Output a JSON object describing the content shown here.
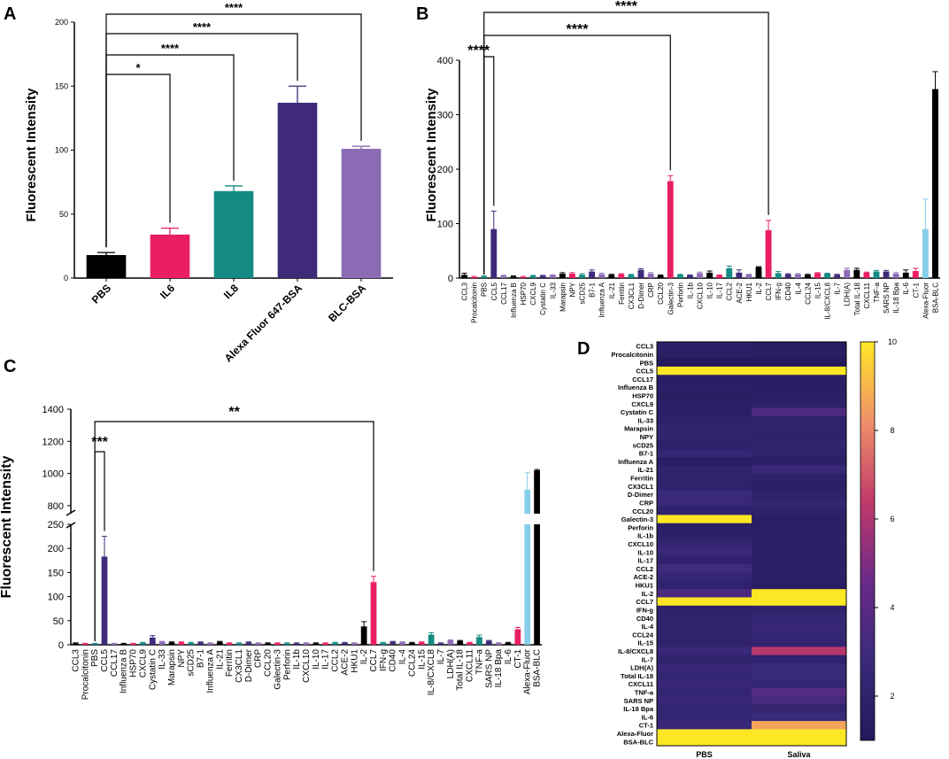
{
  "chart_data": [
    {
      "panel": "A",
      "type": "bar",
      "ylabel": "Fluorescent Intensity",
      "ylim": [
        0,
        200
      ],
      "yticks": [
        0,
        50,
        100,
        150,
        200
      ],
      "categories": [
        "PBS",
        "IL6",
        "IL8",
        "Alexa Fluor 647-BSA",
        "BLC-BSA"
      ],
      "values": [
        18,
        34,
        68,
        137,
        101
      ],
      "errors": [
        2,
        5,
        4,
        13,
        2
      ],
      "colors": [
        "#000000",
        "#e91e63",
        "#138a82",
        "#3f2a7a",
        "#8b6bb4"
      ],
      "significance": [
        {
          "from": 0,
          "to": 1,
          "label": "*"
        },
        {
          "from": 0,
          "to": 2,
          "label": "****"
        },
        {
          "from": 0,
          "to": 3,
          "label": "****"
        },
        {
          "from": 0,
          "to": 4,
          "label": "****"
        }
      ]
    },
    {
      "panel": "B",
      "type": "bar",
      "ylabel": "Fluorescent Intensity",
      "ylim": [
        0,
        400
      ],
      "yticks": [
        0,
        100,
        200,
        300,
        400
      ],
      "categories": [
        "CCL3",
        "Procalcitonin",
        "PBS",
        "CCL5",
        "CCL17",
        "Influenza B",
        "HSP70",
        "CXCL9",
        "Cystatin C",
        "IL-33",
        "Marapsin",
        "NPY",
        "sCD25",
        "B7-1",
        "Influenza A",
        "IL-21",
        "Ferritin",
        "CX3CL1",
        "D-Dimer",
        "CRP",
        "CCL20",
        "Galectin-3",
        "Perforin",
        "IL-1b",
        "CXCL10",
        "IL-10",
        "IL-17",
        "CCL2",
        "ACE-2",
        "HKU1",
        "IL-2",
        "CCL7",
        "IFN-g",
        "CD40",
        "IL-4",
        "CCL24",
        "IL-15",
        "IL-8/CXCL8",
        "IL-7",
        "LDH(A)",
        "Total IL-18",
        "CXCL11",
        "TNF-a",
        "SARS NP",
        "IL-18 Bpa",
        "IL-6",
        "CT-1",
        "Alexa-Fluor",
        "BSA-BLC"
      ],
      "values": [
        6,
        2,
        3,
        90,
        4,
        3,
        2,
        4,
        4,
        5,
        8,
        8,
        6,
        12,
        7,
        6,
        7,
        6,
        15,
        8,
        5,
        178,
        6,
        5,
        9,
        10,
        5,
        18,
        10,
        6,
        20,
        88,
        9,
        7,
        7,
        6,
        9,
        8,
        6,
        15,
        15,
        10,
        12,
        12,
        8,
        10,
        13,
        90,
        347
      ],
      "errors": [
        3,
        1,
        1,
        33,
        1,
        1,
        1,
        1,
        1,
        1,
        2,
        2,
        2,
        3,
        2,
        1,
        1,
        1,
        2,
        2,
        1,
        10,
        1,
        1,
        2,
        3,
        1,
        4,
        5,
        1,
        1,
        18,
        3,
        1,
        1,
        1,
        1,
        1,
        1,
        3,
        3,
        1,
        2,
        2,
        2,
        5,
        5,
        55,
        32
      ],
      "significance": [
        {
          "from": 2,
          "to": 3,
          "label": "****"
        },
        {
          "from": 2,
          "to": 21,
          "label": "****"
        },
        {
          "from": 2,
          "to": 31,
          "label": "****"
        }
      ]
    },
    {
      "panel": "C",
      "type": "bar",
      "broken_axis": true,
      "ylabel": "Fluorescent Intensity",
      "lower_ylim": [
        0,
        250
      ],
      "lower_yticks": [
        0,
        50,
        100,
        150,
        200,
        250
      ],
      "upper_ylim": [
        750,
        1400
      ],
      "upper_yticks": [
        800,
        1000,
        1200,
        1400
      ],
      "categories": [
        "CCL3",
        "Procalcitonin",
        "PBS",
        "CCL5",
        "CCL17",
        "Influenza B",
        "HSP70",
        "CXCL9",
        "Cystatin C",
        "IL-33",
        "Marapsin",
        "NPY",
        "sCD25",
        "B7-1",
        "Influenza A",
        "IL-21",
        "Ferritin",
        "CX3CL1",
        "D-Dimer",
        "CRP",
        "CCL20",
        "Galectin-3",
        "Perforin",
        "IL-1b",
        "CXCL10",
        "IL-10",
        "IL-17",
        "CCL2",
        "ACE-2",
        "HKU1",
        "IL-2",
        "CCL7",
        "IFN-g",
        "CD40",
        "IL-4",
        "CCL24",
        "IL-15",
        "IL-8/CXCL8",
        "IL-7",
        "LDH(A)",
        "Total IL-18",
        "CXCL11",
        "TNF-a",
        "SARS NP",
        "IL-18 Bpa",
        "IL-6",
        "CT-1",
        "Alexa-Fluor",
        "BSA-BLC"
      ],
      "values": [
        3,
        2,
        2,
        183,
        2,
        2,
        2,
        4,
        15,
        6,
        5,
        5,
        4,
        5,
        3,
        6,
        3,
        3,
        5,
        3,
        3,
        3,
        3,
        3,
        3,
        3,
        3,
        4,
        4,
        3,
        38,
        130,
        4,
        6,
        5,
        4,
        5,
        21,
        3,
        9,
        8,
        4,
        16,
        8,
        3,
        4,
        32,
        900,
        1020
      ],
      "errors": [
        1,
        1,
        1,
        42,
        1,
        1,
        1,
        1,
        4,
        1,
        1,
        1,
        1,
        1,
        1,
        1,
        1,
        1,
        1,
        1,
        1,
        1,
        1,
        1,
        1,
        1,
        1,
        1,
        1,
        1,
        10,
        12,
        1,
        1,
        1,
        1,
        1,
        4,
        1,
        1,
        1,
        1,
        4,
        1,
        1,
        1,
        4,
        105,
        5
      ],
      "significance": [
        {
          "from": 2,
          "to": 3,
          "label": "***"
        },
        {
          "from": 2,
          "to": 31,
          "label": "**"
        }
      ]
    },
    {
      "panel": "D",
      "type": "heatmap",
      "columns": [
        "PBS",
        "Saliva"
      ],
      "rows": [
        "CCL3",
        "Procalcitonin",
        "PBS",
        "CCL5",
        "CCL17",
        "Influenza B",
        "HSP70",
        "CXCL9",
        "Cystatin C",
        "IL-33",
        "Marapsin",
        "NPY",
        "sCD25",
        "B7-1",
        "Influenza A",
        "IL-21",
        "Ferritin",
        "CX3CL1",
        "D-Dimer",
        "CRP",
        "CCL20",
        "Galectin-3",
        "Perforin",
        "IL-1b",
        "CXCL10",
        "IL-10",
        "IL-17",
        "CCL2",
        "ACE-2",
        "HKU1",
        "IL-2",
        "CCL7",
        "IFN-g",
        "CD40",
        "IL-4",
        "CCL24",
        "IL-15",
        "IL-8/CXCL8",
        "IL-7",
        "LDH(A)",
        "Total IL-18",
        "CXCL11",
        "TNF-a",
        "SARS NP",
        "IL-18 Bpa",
        "IL-6",
        "CT-1",
        "Alexa-Fluor",
        "BSA-BLC"
      ],
      "values": [
        [
          1.6,
          1.3
        ],
        [
          1.5,
          1.4
        ],
        [
          1.0,
          1.0
        ],
        [
          10,
          10
        ],
        [
          1.5,
          1.5
        ],
        [
          1.6,
          1.4
        ],
        [
          1.3,
          1.6
        ],
        [
          1.7,
          1.8
        ],
        [
          1.6,
          3.6
        ],
        [
          1.8,
          2.0
        ],
        [
          2.2,
          2.0
        ],
        [
          2.2,
          1.8
        ],
        [
          1.8,
          2.2
        ],
        [
          2.4,
          2.0
        ],
        [
          1.4,
          1.6
        ],
        [
          2.0,
          2.6
        ],
        [
          2.0,
          1.8
        ],
        [
          2.0,
          1.6
        ],
        [
          2.8,
          1.9
        ],
        [
          2.6,
          2.3
        ],
        [
          2.0,
          1.9
        ],
        [
          10,
          1.6
        ],
        [
          1.6,
          1.5
        ],
        [
          1.8,
          1.6
        ],
        [
          2.4,
          1.8
        ],
        [
          2.6,
          1.6
        ],
        [
          2.0,
          1.6
        ],
        [
          3.0,
          1.8
        ],
        [
          2.4,
          1.6
        ],
        [
          2.0,
          1.4
        ],
        [
          3.4,
          10
        ],
        [
          10,
          10
        ],
        [
          1.8,
          2.0
        ],
        [
          2.0,
          2.4
        ],
        [
          2.0,
          2.6
        ],
        [
          2.0,
          2.4
        ],
        [
          2.0,
          2.2
        ],
        [
          2.6,
          6.2
        ],
        [
          2.0,
          2.0
        ],
        [
          2.6,
          2.8
        ],
        [
          2.4,
          2.8
        ],
        [
          2.6,
          2.4
        ],
        [
          2.4,
          3.8
        ],
        [
          2.6,
          3.2
        ],
        [
          2.4,
          2.2
        ],
        [
          2.4,
          2.8
        ],
        [
          2.6,
          8.6
        ],
        [
          10,
          10
        ],
        [
          10,
          10
        ]
      ],
      "colorbar": {
        "min": 1,
        "max": 10,
        "ticks": [
          2,
          4,
          6,
          8,
          10
        ]
      }
    }
  ],
  "panel_labels": [
    "A",
    "B",
    "C",
    "D"
  ]
}
